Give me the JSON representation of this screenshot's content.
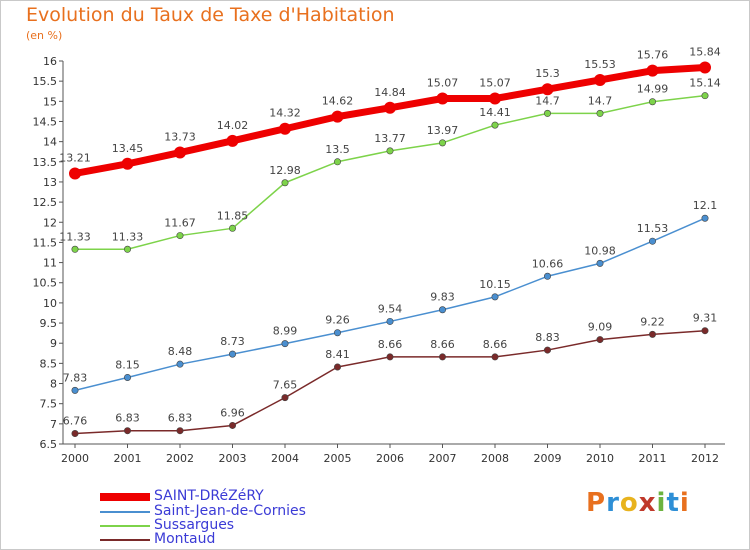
{
  "header": {
    "title": "Evolution du Taux de Taxe d'Habitation",
    "subtitle": "(en %)"
  },
  "logo": {
    "text": "Proxiti",
    "colors": [
      "#e8701e",
      "#2e8fd6",
      "#e8b31e",
      "#c0392b",
      "#6cb33f",
      "#2e8fd6",
      "#e8701e"
    ]
  },
  "chart_data": {
    "type": "line",
    "x": [
      "2000",
      "2001",
      "2002",
      "2003",
      "2004",
      "2005",
      "2006",
      "2007",
      "2008",
      "2009",
      "2010",
      "2011",
      "2012"
    ],
    "ylim": [
      6.5,
      16
    ],
    "yticks": [
      "6.5",
      "7",
      "7.5",
      "8",
      "8.5",
      "9",
      "9.5",
      "10",
      "10.5",
      "11",
      "11.5",
      "12",
      "12.5",
      "13",
      "13.5",
      "14",
      "14.5",
      "15",
      "15.5",
      "16"
    ],
    "grid": false,
    "legend": "bottom-left",
    "series": [
      {
        "name": "SAINT-DRéZéRY",
        "color": "#ee0000",
        "values": [
          13.21,
          13.45,
          13.73,
          14.02,
          14.32,
          14.62,
          14.84,
          15.07,
          15.07,
          15.3,
          15.53,
          15.76,
          15.84
        ],
        "labels": [
          "13.21",
          "13.45",
          "13.73",
          "14.02",
          "14.32",
          "14.62",
          "14.84",
          "15.07",
          "15.07",
          "15.3",
          "15.53",
          "15.76",
          "15.84"
        ]
      },
      {
        "name": "Saint-Jean-de-Cornies",
        "color": "#4a8fd0",
        "values": [
          7.83,
          8.15,
          8.48,
          8.73,
          8.99,
          9.26,
          9.54,
          9.83,
          10.15,
          10.66,
          10.98,
          11.53,
          12.1
        ],
        "labels": [
          "7.83",
          "8.15",
          "8.48",
          "8.73",
          "8.99",
          "9.26",
          "9.54",
          "9.83",
          "10.15",
          "10.66",
          "10.98",
          "11.53",
          "12.1"
        ]
      },
      {
        "name": "Sussargues",
        "color": "#7dd34a",
        "values": [
          11.33,
          11.33,
          11.67,
          11.85,
          12.98,
          13.5,
          13.77,
          13.97,
          14.41,
          14.7,
          14.7,
          14.99,
          15.14
        ],
        "labels": [
          "11.33",
          "11.33",
          "11.67",
          "11.85",
          "12.98",
          "13.5",
          "13.77",
          "13.97",
          "14.41",
          "14.7",
          "14.7",
          "14.99",
          "15.14"
        ]
      },
      {
        "name": "Montaud",
        "color": "#7a2a2a",
        "values": [
          6.76,
          6.83,
          6.83,
          6.96,
          7.65,
          8.41,
          8.66,
          8.66,
          8.66,
          8.83,
          9.09,
          9.22,
          9.31
        ],
        "labels": [
          "6.76",
          "6.83",
          "6.83",
          "6.96",
          "7.65",
          "8.41",
          "8.66",
          "8.66",
          "8.66",
          "8.83",
          "9.09",
          "9.22",
          "9.31"
        ]
      }
    ]
  }
}
